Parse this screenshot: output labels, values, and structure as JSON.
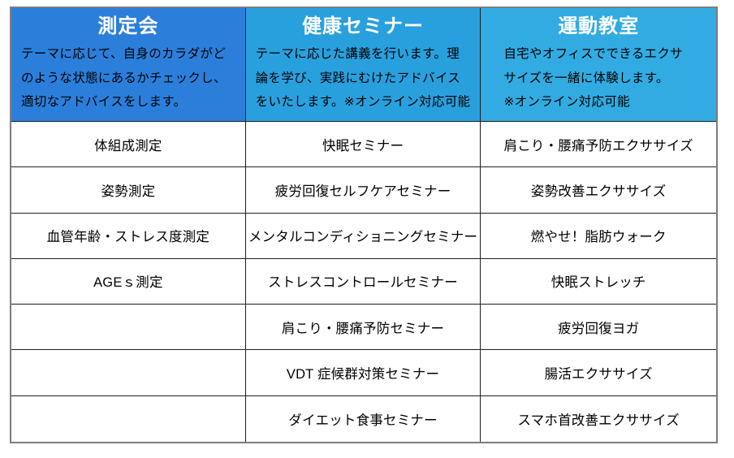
{
  "colors": {
    "header-bg-1": "#2b7fdb",
    "header-bg-2": "#29a0de",
    "header-bg-3": "#31abe2",
    "header-title-color": "#ffffff",
    "body-text-color": "#000000",
    "outer-border": "#7d7d7d",
    "inner-border": "#1f1f1f"
  },
  "table": {
    "columns": [
      {
        "id": "measurement-session",
        "header": {
          "title": "測定会",
          "description": "テーマに応じて、自身のカラダがどのような状態にあるかチェックし、適切なアドバイスをします。"
        },
        "items": [
          "体組成測定",
          "姿勢測定",
          "血管年齢・ストレス度測定",
          "AGEｓ測定",
          "",
          "",
          ""
        ]
      },
      {
        "id": "health-seminar",
        "header": {
          "title": "健康セミナー",
          "description": "テーマに応じた講義を行います。理論を学び、実践にむけたアドバイスをいたします。※オンライン対応可能"
        },
        "items": [
          "快眠セミナー",
          "疲労回復セルフケアセミナー",
          "メンタルコンディショニングセミナー",
          "ストレスコントロールセミナー",
          "肩こり・腰痛予防セミナー",
          "VDT 症候群対策セミナー",
          "ダイエット食事セミナー"
        ]
      },
      {
        "id": "exercise-class",
        "header": {
          "title": "運動教室",
          "description": "自宅やオフィスでできるエクササイズを一緒に体験します。\n※オンライン対応可能"
        },
        "items": [
          "肩こり・腰痛予防エクササイズ",
          "姿勢改善エクササイズ",
          "燃やせ！脂肪ウォーク",
          "快眠ストレッチ",
          "疲労回復ヨガ",
          "腸活エクササイズ",
          "スマホ首改善エクササイズ"
        ]
      }
    ]
  }
}
